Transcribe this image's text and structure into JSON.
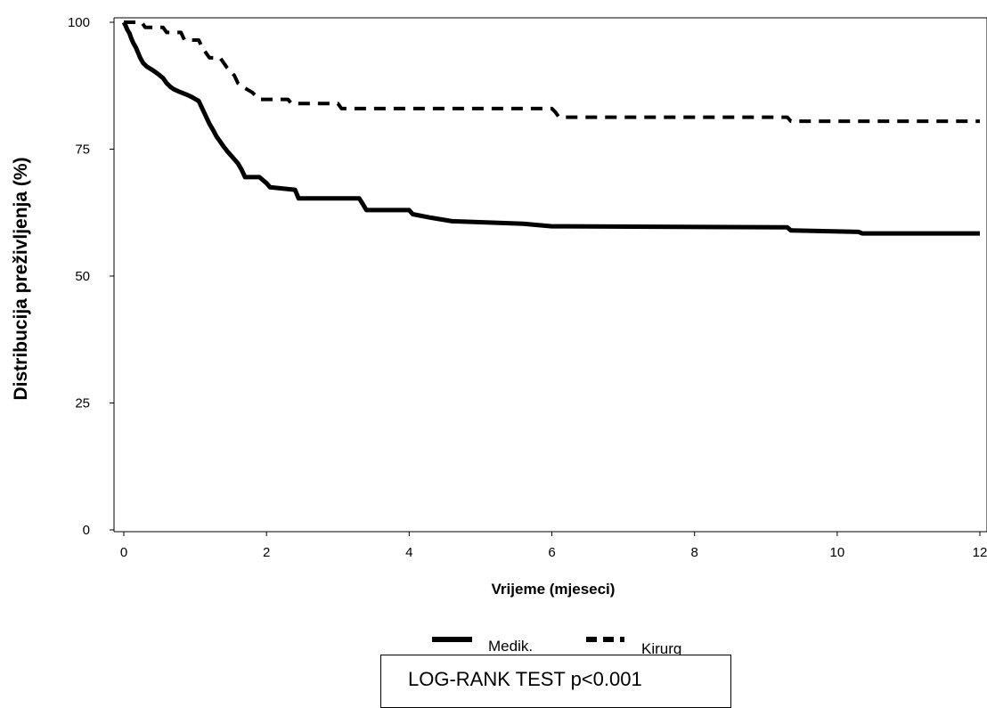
{
  "chart_data": {
    "type": "line",
    "title": "",
    "xlabel": "Vrijeme (mjeseci)",
    "ylabel": "Distribucija preživljenja (%)",
    "xlim": [
      0,
      12
    ],
    "ylim": [
      0,
      100
    ],
    "x_ticks": [
      0,
      2,
      4,
      6,
      8,
      10,
      12
    ],
    "y_ticks": [
      0,
      25,
      50,
      75,
      100
    ],
    "grid": false,
    "legend_position": "bottom",
    "series": [
      {
        "name": "Medik.",
        "color": "#000000",
        "style": "solid",
        "points": [
          [
            0,
            100
          ],
          [
            0.02,
            99.5
          ],
          [
            0.05,
            98.5
          ],
          [
            0.08,
            97.8
          ],
          [
            0.1,
            97
          ],
          [
            0.13,
            96
          ],
          [
            0.17,
            95
          ],
          [
            0.2,
            94
          ],
          [
            0.23,
            93
          ],
          [
            0.27,
            92
          ],
          [
            0.32,
            91.3
          ],
          [
            0.4,
            90.6
          ],
          [
            0.48,
            89.8
          ],
          [
            0.55,
            89
          ],
          [
            0.6,
            88
          ],
          [
            0.65,
            87.3
          ],
          [
            0.7,
            86.8
          ],
          [
            0.78,
            86.3
          ],
          [
            0.87,
            85.8
          ],
          [
            0.95,
            85.3
          ],
          [
            1.05,
            84.5
          ],
          [
            1.1,
            83
          ],
          [
            1.15,
            81.5
          ],
          [
            1.2,
            80
          ],
          [
            1.25,
            78.8
          ],
          [
            1.3,
            77.5
          ],
          [
            1.35,
            76.5
          ],
          [
            1.4,
            75.5
          ],
          [
            1.45,
            74.6
          ],
          [
            1.5,
            73.8
          ],
          [
            1.55,
            73
          ],
          [
            1.6,
            72.2
          ],
          [
            1.65,
            71
          ],
          [
            1.7,
            69.5
          ],
          [
            1.9,
            69.5
          ],
          [
            2.0,
            68.3
          ],
          [
            2.05,
            67.5
          ],
          [
            2.4,
            67
          ],
          [
            2.45,
            65.3
          ],
          [
            3.3,
            65.3
          ],
          [
            3.35,
            64.2
          ],
          [
            3.4,
            63
          ],
          [
            4.0,
            63
          ],
          [
            4.05,
            62.2
          ],
          [
            4.3,
            61.5
          ],
          [
            4.6,
            60.8
          ],
          [
            5.6,
            60.3
          ],
          [
            6.0,
            59.8
          ],
          [
            9.3,
            59.6
          ],
          [
            9.35,
            59
          ],
          [
            10.3,
            58.7
          ],
          [
            10.35,
            58.4
          ],
          [
            12,
            58.4
          ]
        ]
      },
      {
        "name": "Kirurg",
        "color": "#000000",
        "style": "dashed",
        "points": [
          [
            0,
            100
          ],
          [
            0.25,
            100
          ],
          [
            0.3,
            99
          ],
          [
            0.55,
            99
          ],
          [
            0.6,
            98
          ],
          [
            0.8,
            98
          ],
          [
            0.85,
            96.5
          ],
          [
            1.05,
            96.5
          ],
          [
            1.1,
            95
          ],
          [
            1.2,
            93
          ],
          [
            1.35,
            93
          ],
          [
            1.45,
            91
          ],
          [
            1.55,
            89.5
          ],
          [
            1.6,
            88
          ],
          [
            1.7,
            87
          ],
          [
            1.8,
            86.2
          ],
          [
            1.9,
            84.8
          ],
          [
            2.3,
            84.8
          ],
          [
            2.35,
            84
          ],
          [
            3.0,
            84
          ],
          [
            3.05,
            83
          ],
          [
            6.0,
            83
          ],
          [
            6.05,
            82.3
          ],
          [
            6.1,
            81.3
          ],
          [
            9.3,
            81.3
          ],
          [
            9.35,
            80.5
          ],
          [
            12,
            80.5
          ]
        ]
      }
    ]
  },
  "stat_box": {
    "text": "LOG-RANK TEST p<0.001"
  }
}
